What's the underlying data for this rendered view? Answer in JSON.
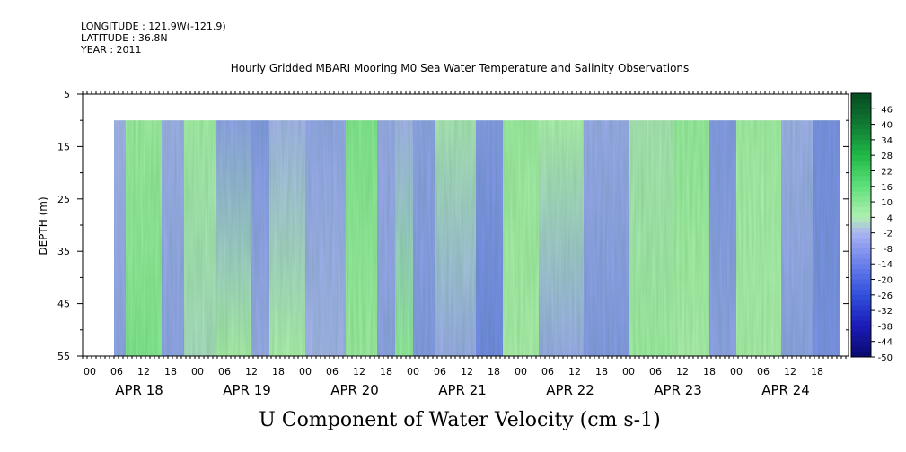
{
  "header": {
    "longitude": "LONGITUDE : 121.9W(-121.9)",
    "latitude": "LATITUDE : 36.8N",
    "year": "YEAR : 2011"
  },
  "chart_data": {
    "type": "heatmap",
    "title": "Hourly Gridded MBARI Mooring M0 Sea Water Temperature and Salinity Observations",
    "xlabel": "U Component of Water Velocity (cm s-1)",
    "ylabel": "DEPTH (m)",
    "y_ticks": [
      "5",
      "15",
      "25",
      "35",
      "45",
      "55"
    ],
    "ylim": [
      55,
      5
    ],
    "x_hour_ticks": [
      "00",
      "06",
      "12",
      "18",
      "00",
      "06",
      "12",
      "18",
      "00",
      "06",
      "12",
      "18",
      "00",
      "06",
      "12",
      "18",
      "00",
      "06",
      "12",
      "18",
      "00",
      "06",
      "12",
      "18",
      "00",
      "06",
      "12",
      "18"
    ],
    "x_day_labels": [
      "APR 18",
      "APR 19",
      "APR 20",
      "APR 21",
      "APR 22",
      "APR 23",
      "APR 24"
    ],
    "colorbar": {
      "labels": [
        "46",
        "40",
        "34",
        "28",
        "22",
        "16",
        "10",
        "4",
        "-2",
        "-8",
        "-14",
        "-20",
        "-26",
        "-32",
        "-38",
        "-44",
        "-50"
      ],
      "range": [
        -50,
        52
      ]
    },
    "data_depth_range": [
      10,
      55
    ],
    "time_bands": [
      {
        "x0": 127,
        "x1": 140,
        "top": -2,
        "bottom": -6
      },
      {
        "x0": 140,
        "x1": 180,
        "top": 6,
        "bottom": 10
      },
      {
        "x0": 180,
        "x1": 205,
        "top": -3,
        "bottom": -6
      },
      {
        "x0": 205,
        "x1": 240,
        "top": 5,
        "bottom": 2
      },
      {
        "x0": 240,
        "x1": 280,
        "top": -6,
        "bottom": 4
      },
      {
        "x0": 280,
        "x1": 300,
        "top": -8,
        "bottom": -4
      },
      {
        "x0": 300,
        "x1": 340,
        "top": -2,
        "bottom": 4
      },
      {
        "x0": 340,
        "x1": 385,
        "top": -5,
        "bottom": -2
      },
      {
        "x0": 385,
        "x1": 420,
        "top": 10,
        "bottom": 6
      },
      {
        "x0": 420,
        "x1": 440,
        "top": -4,
        "bottom": -6
      },
      {
        "x0": 440,
        "x1": 460,
        "top": -2,
        "bottom": 8
      },
      {
        "x0": 460,
        "x1": 485,
        "top": -6,
        "bottom": -8
      },
      {
        "x0": 485,
        "x1": 530,
        "top": 3,
        "bottom": -4
      },
      {
        "x0": 530,
        "x1": 560,
        "top": -8,
        "bottom": -12
      },
      {
        "x0": 560,
        "x1": 600,
        "top": 6,
        "bottom": 4
      },
      {
        "x0": 600,
        "x1": 650,
        "top": 4,
        "bottom": -4
      },
      {
        "x0": 650,
        "x1": 700,
        "top": -4,
        "bottom": -8
      },
      {
        "x0": 700,
        "x1": 750,
        "top": 3,
        "bottom": 6
      },
      {
        "x0": 750,
        "x1": 790,
        "top": 7,
        "bottom": 4
      },
      {
        "x0": 790,
        "x1": 820,
        "top": -8,
        "bottom": -6
      },
      {
        "x0": 820,
        "x1": 870,
        "top": 5,
        "bottom": 4
      },
      {
        "x0": 870,
        "x1": 905,
        "top": -3,
        "bottom": -6
      },
      {
        "x0": 905,
        "x1": 935,
        "top": -10,
        "bottom": -10
      }
    ]
  }
}
